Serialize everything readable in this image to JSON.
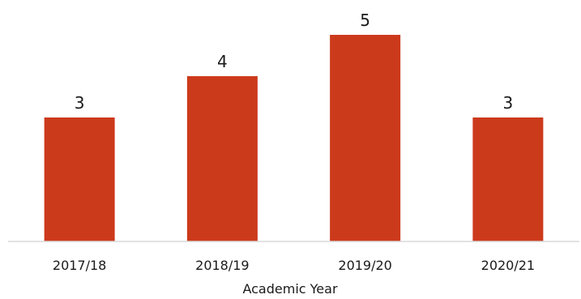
{
  "chart_data": {
    "type": "bar",
    "categories": [
      "2017/18",
      "2018/19",
      "2019/20",
      "2020/21"
    ],
    "values": [
      3,
      4,
      5,
      3
    ],
    "data_labels": [
      "3",
      "4",
      "5",
      "3"
    ],
    "title": "",
    "xlabel": "Academic Year",
    "ylabel": "",
    "ylim": [
      0,
      5
    ],
    "grid": false,
    "legend": "none",
    "bar_color": "#cc3a1c",
    "axis_color": "#d9d9d9"
  }
}
